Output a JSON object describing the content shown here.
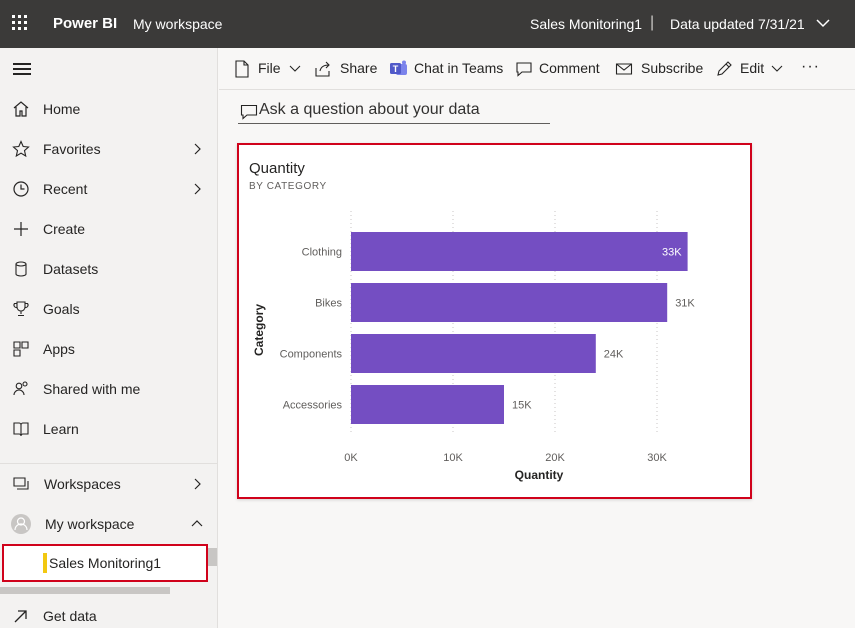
{
  "topbar": {
    "brand": "Power BI",
    "workspace": "My workspace",
    "report_name": "Sales Monitoring1",
    "separator": "|",
    "data_updated": "Data updated 7/31/21"
  },
  "sidebar": {
    "items": [
      {
        "label": "Home",
        "icon": "home-icon"
      },
      {
        "label": "Favorites",
        "icon": "star-icon"
      },
      {
        "label": "Recent",
        "icon": "clock-icon"
      },
      {
        "label": "Create",
        "icon": "plus-icon"
      },
      {
        "label": "Datasets",
        "icon": "database-icon"
      },
      {
        "label": "Goals",
        "icon": "trophy-icon"
      },
      {
        "label": "Apps",
        "icon": "apps-icon"
      },
      {
        "label": "Shared with me",
        "icon": "shared-icon"
      },
      {
        "label": "Learn",
        "icon": "book-icon"
      }
    ],
    "workspaces": "Workspaces",
    "my_workspace": "My workspace",
    "selected_report": "Sales Monitoring1",
    "get_data": "Get data"
  },
  "actionbar": {
    "file": "File",
    "share": "Share",
    "chat_in_teams": "Chat in Teams",
    "comment": "Comment",
    "subscribe": "Subscribe",
    "edit": "Edit",
    "more": "···"
  },
  "qa": {
    "placeholder": "Ask a question about your data"
  },
  "tile": {
    "title": "Quantity",
    "subtitle": "BY CATEGORY"
  },
  "chart_data": {
    "type": "bar",
    "orientation": "horizontal",
    "categories": [
      "Clothing",
      "Bikes",
      "Components",
      "Accessories"
    ],
    "values": [
      33000,
      31000,
      24000,
      15000
    ],
    "data_labels": [
      "33K",
      "31K",
      "24K",
      "15K"
    ],
    "xlabel": "Quantity",
    "ylabel": "Category",
    "xlim": [
      0,
      35000
    ],
    "x_ticks": [
      0,
      10000,
      20000,
      30000
    ],
    "x_tick_labels": [
      "0K",
      "10K",
      "20K",
      "30K"
    ],
    "grid": "vertical dotted",
    "color": "#744ec2"
  },
  "colors": {
    "topbar": "#3b3a39",
    "accent_yellow": "#f2c811",
    "highlight_red": "#d0021b",
    "teams_purple": "#5059c9"
  }
}
